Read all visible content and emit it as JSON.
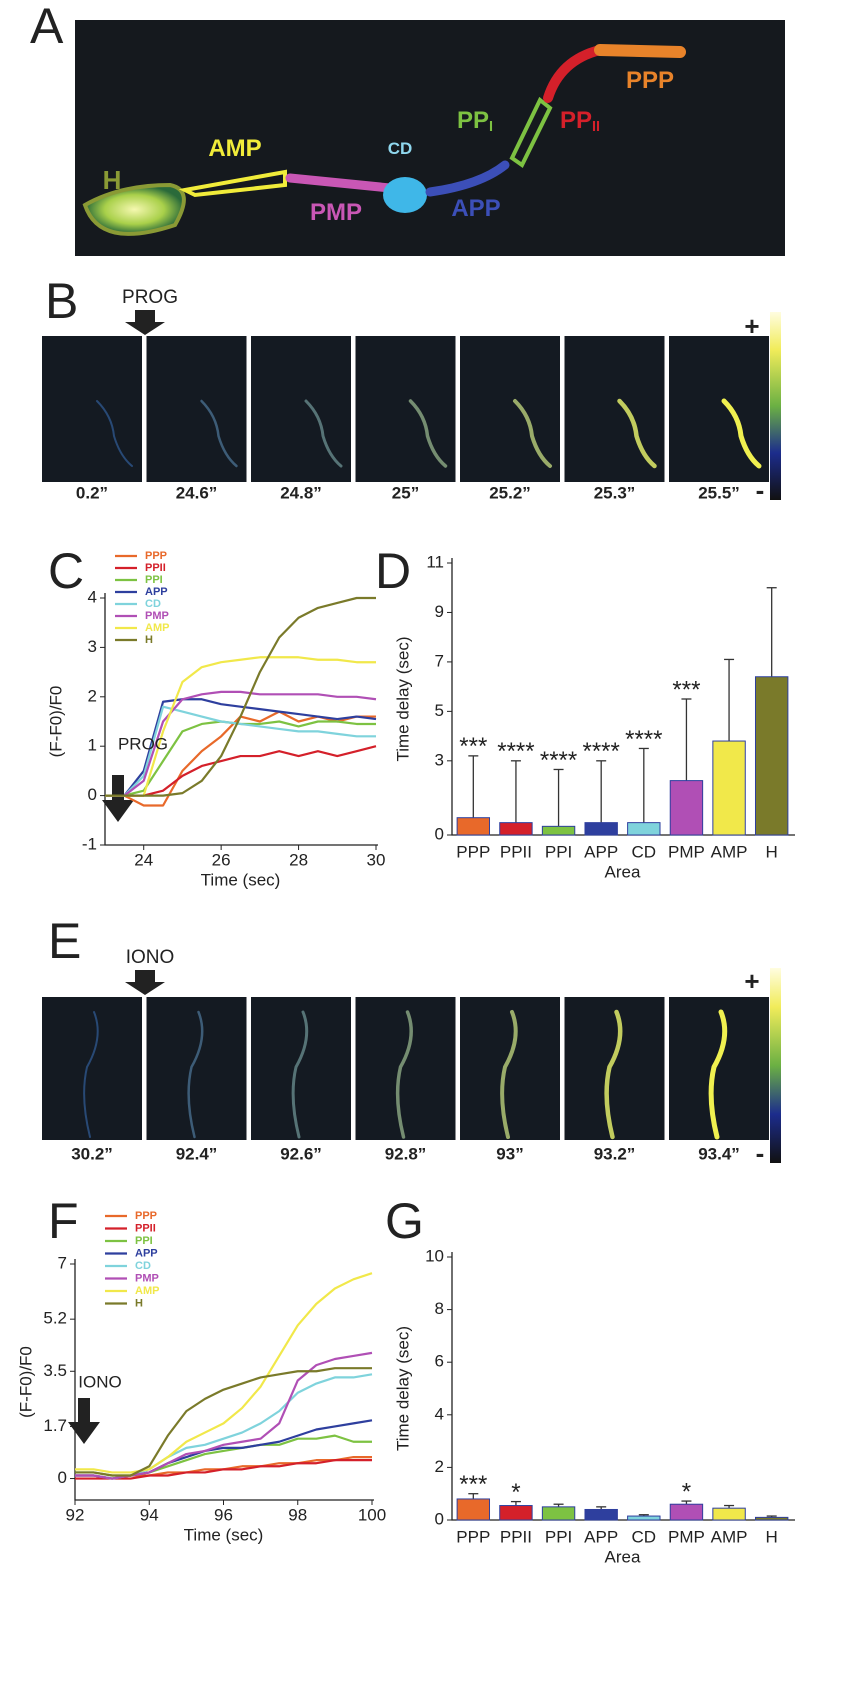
{
  "figure": {
    "panel_labels": [
      "A",
      "B",
      "C",
      "D",
      "E",
      "F",
      "G"
    ],
    "image_a_labels": [
      {
        "text": "H"
      },
      {
        "text": "AMP"
      },
      {
        "text": "PMP"
      },
      {
        "text": "CD"
      },
      {
        "text": "APP"
      },
      {
        "text": "PP",
        "sub": "I"
      },
      {
        "text": "PP",
        "sub": "II"
      },
      {
        "text": "PPP"
      }
    ],
    "image_b": {
      "stimulus": "PROG",
      "times": [
        "0.2”",
        "24.6”",
        "24.8”",
        "25”",
        "25.2”",
        "25.3”",
        "25.5”"
      ]
    },
    "image_e": {
      "stimulus": "IONO",
      "times": [
        "30.2”",
        "92.4”",
        "92.6”",
        "92.8”",
        "93”",
        "93.2”",
        "93.4”"
      ]
    },
    "colorbar": {
      "high": "+",
      "low": "-"
    }
  },
  "chart_data": [
    {
      "type": "line",
      "xlabel": "Time (sec)",
      "ylabel": "(F-F0)/F0",
      "annotation": "PROG",
      "x": [
        23,
        23.5,
        24,
        24.5,
        25,
        25.5,
        26,
        26.5,
        27,
        27.5,
        28,
        28.5,
        29,
        29.5,
        30
      ],
      "xlim": [
        23,
        30
      ],
      "xticks": [
        24,
        26,
        28,
        30
      ],
      "ylim": [
        -1,
        4
      ],
      "yticks": [
        -1,
        0,
        1,
        2,
        3,
        4
      ],
      "series": [
        {
          "name": "PPP",
          "color": "#e8692a",
          "values": [
            0,
            0,
            -0.2,
            -0.2,
            0.5,
            0.9,
            1.2,
            1.6,
            1.5,
            1.7,
            1.5,
            1.6,
            1.5,
            1.6,
            1.6
          ]
        },
        {
          "name": "PPII",
          "color": "#d4202a",
          "values": [
            0,
            0,
            0,
            0.1,
            0.4,
            0.6,
            0.7,
            0.8,
            0.8,
            0.9,
            0.8,
            0.9,
            0.8,
            0.9,
            1.0
          ]
        },
        {
          "name": "PPI",
          "color": "#7dc242",
          "values": [
            0,
            0,
            0.1,
            0.7,
            1.3,
            1.45,
            1.5,
            1.45,
            1.45,
            1.5,
            1.4,
            1.5,
            1.5,
            1.45,
            1.45
          ]
        },
        {
          "name": "APP",
          "color": "#2e3f9e",
          "values": [
            0,
            0,
            0.5,
            1.9,
            1.95,
            1.95,
            1.85,
            1.8,
            1.75,
            1.7,
            1.65,
            1.6,
            1.55,
            1.6,
            1.55
          ]
        },
        {
          "name": "CD",
          "color": "#7fd3dc",
          "values": [
            0,
            0,
            0.4,
            1.8,
            1.7,
            1.6,
            1.5,
            1.45,
            1.4,
            1.35,
            1.3,
            1.3,
            1.25,
            1.2,
            1.2
          ]
        },
        {
          "name": "PMP",
          "color": "#b04fb5",
          "values": [
            0,
            0,
            0.3,
            1.5,
            1.95,
            2.05,
            2.1,
            2.1,
            2.05,
            2.05,
            2.05,
            2.05,
            2.0,
            2.0,
            1.95
          ]
        },
        {
          "name": "AMP",
          "color": "#f1e84a",
          "values": [
            0,
            0,
            0,
            1.3,
            2.3,
            2.6,
            2.7,
            2.75,
            2.8,
            2.8,
            2.8,
            2.75,
            2.75,
            2.7,
            2.7
          ]
        },
        {
          "name": "H",
          "color": "#7a7a2a",
          "values": [
            0,
            0,
            0,
            0,
            0.05,
            0.3,
            0.8,
            1.6,
            2.5,
            3.2,
            3.6,
            3.8,
            3.9,
            4.0,
            4.0
          ]
        }
      ]
    },
    {
      "type": "bar",
      "xlabel": "Area",
      "ylabel": "Time delay (sec)",
      "categories": [
        "PPP",
        "PPII",
        "PPI",
        "APP",
        "CD",
        "PMP",
        "AMP",
        "H"
      ],
      "values": [
        0.7,
        0.5,
        0.35,
        0.5,
        0.5,
        2.2,
        3.8,
        6.4
      ],
      "errors": [
        2.5,
        2.5,
        2.3,
        2.5,
        3.0,
        3.3,
        3.3,
        3.6
      ],
      "significance": [
        "***",
        "****",
        "****",
        "****",
        "****",
        "***",
        null,
        null
      ],
      "colors": [
        "#e8692a",
        "#d4202a",
        "#7dc242",
        "#2e3f9e",
        "#7fd3dc",
        "#b04fb5",
        "#f1e84a",
        "#7a7a2a"
      ],
      "ylim": [
        0,
        11
      ],
      "yticks": [
        0,
        3,
        5,
        7,
        9,
        11
      ]
    },
    {
      "type": "line",
      "xlabel": "Time (sec)",
      "ylabel": "(F-F0)/F0",
      "annotation": "IONO",
      "x": [
        92,
        92.5,
        93,
        93.5,
        94,
        94.5,
        95,
        95.5,
        96,
        96.5,
        97,
        97.5,
        98,
        98.5,
        99,
        99.5,
        100
      ],
      "xlim": [
        92,
        100
      ],
      "xticks": [
        92,
        94,
        96,
        98,
        100
      ],
      "ylim": [
        -0.7,
        7
      ],
      "yticks": [
        0,
        1.7,
        3.5,
        5.2,
        7
      ],
      "series": [
        {
          "name": "PPP",
          "color": "#e8692a",
          "values": [
            0.1,
            0.1,
            0,
            0.1,
            0.1,
            0.2,
            0.2,
            0.3,
            0.3,
            0.4,
            0.4,
            0.5,
            0.5,
            0.6,
            0.6,
            0.7,
            0.7
          ]
        },
        {
          "name": "PPII",
          "color": "#d4202a",
          "values": [
            0,
            0,
            0,
            0,
            0.1,
            0.1,
            0.2,
            0.2,
            0.3,
            0.3,
            0.4,
            0.4,
            0.5,
            0.5,
            0.6,
            0.6,
            0.6
          ]
        },
        {
          "name": "PPI",
          "color": "#7dc242",
          "values": [
            0.2,
            0.2,
            0.1,
            0.1,
            0.2,
            0.4,
            0.6,
            0.8,
            0.9,
            1.0,
            1.1,
            1.1,
            1.3,
            1.3,
            1.4,
            1.2,
            1.2
          ]
        },
        {
          "name": "APP",
          "color": "#2e3f9e",
          "values": [
            0.1,
            0.1,
            0,
            0.1,
            0.2,
            0.5,
            0.7,
            0.9,
            1.0,
            1.0,
            1.1,
            1.2,
            1.4,
            1.6,
            1.7,
            1.8,
            1.9
          ]
        },
        {
          "name": "CD",
          "color": "#7fd3dc",
          "values": [
            0.1,
            0.1,
            0,
            0.1,
            0.3,
            0.7,
            1.0,
            1.1,
            1.3,
            1.5,
            1.8,
            2.2,
            2.8,
            3.1,
            3.3,
            3.3,
            3.4
          ]
        },
        {
          "name": "PMP",
          "color": "#b04fb5",
          "values": [
            0.1,
            0.1,
            0,
            0.1,
            0.2,
            0.5,
            0.8,
            0.9,
            1.1,
            1.2,
            1.3,
            1.8,
            3.2,
            3.7,
            3.9,
            4.0,
            4.1
          ]
        },
        {
          "name": "AMP",
          "color": "#f1e84a",
          "values": [
            0.3,
            0.3,
            0.2,
            0.2,
            0.3,
            0.7,
            1.2,
            1.5,
            1.8,
            2.3,
            3.0,
            4.0,
            5.0,
            5.7,
            6.2,
            6.5,
            6.7
          ]
        },
        {
          "name": "H",
          "color": "#7a7a2a",
          "values": [
            0.2,
            0.2,
            0.1,
            0.1,
            0.4,
            1.4,
            2.2,
            2.6,
            2.9,
            3.1,
            3.3,
            3.4,
            3.5,
            3.5,
            3.6,
            3.6,
            3.6
          ]
        }
      ]
    },
    {
      "type": "bar",
      "xlabel": "Area",
      "ylabel": "Time delay (sec)",
      "categories": [
        "PPP",
        "PPII",
        "PPI",
        "APP",
        "CD",
        "PMP",
        "AMP",
        "H"
      ],
      "values": [
        0.8,
        0.55,
        0.5,
        0.4,
        0.15,
        0.6,
        0.45,
        0.1
      ],
      "errors": [
        0.2,
        0.15,
        0.1,
        0.1,
        0.05,
        0.12,
        0.1,
        0.05
      ],
      "significance": [
        "***",
        "*",
        null,
        null,
        null,
        "*",
        null,
        null
      ],
      "colors": [
        "#e8692a",
        "#d4202a",
        "#7dc242",
        "#2e3f9e",
        "#7fd3dc",
        "#b04fb5",
        "#f1e84a",
        "#7a7a2a"
      ],
      "ylim": [
        0,
        10
      ],
      "yticks": [
        0,
        2,
        4,
        6,
        8,
        10
      ]
    }
  ]
}
